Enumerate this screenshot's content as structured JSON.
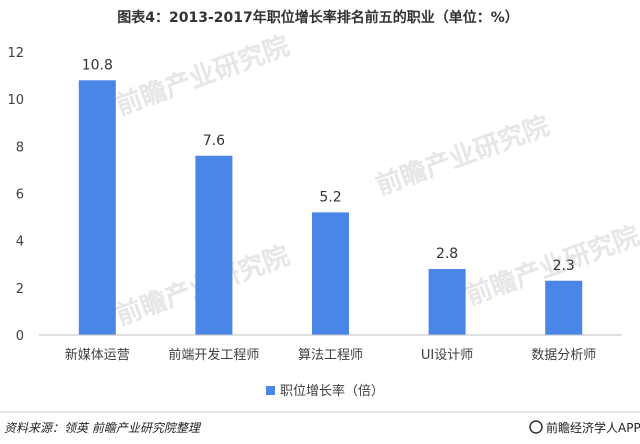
{
  "chart_data": {
    "type": "bar",
    "title": "图表4：2013-2017年职位增长率排名前五的职业（单位：%）",
    "categories": [
      "新媒体运营",
      "前端开发工程师",
      "算法工程师",
      "UI设计师",
      "数据分析师"
    ],
    "series": [
      {
        "name": "职位增长率（倍）",
        "values": [
          10.8,
          7.6,
          5.2,
          2.8,
          2.3
        ]
      }
    ],
    "data_labels": [
      "10.8",
      "7.6",
      "5.2",
      "2.8",
      "2.3"
    ],
    "yticks": [
      "0",
      "2",
      "4",
      "6",
      "8",
      "10",
      "12"
    ],
    "ylim": [
      0,
      12
    ],
    "grid": false,
    "legend_position": "bottom",
    "bar_color": "#4a86e8"
  },
  "footer": {
    "source": "资料来源：领英  前瞻产业研究院整理",
    "brand": "前瞻经济学人APP",
    "watermark": "前瞻产业研究院"
  }
}
